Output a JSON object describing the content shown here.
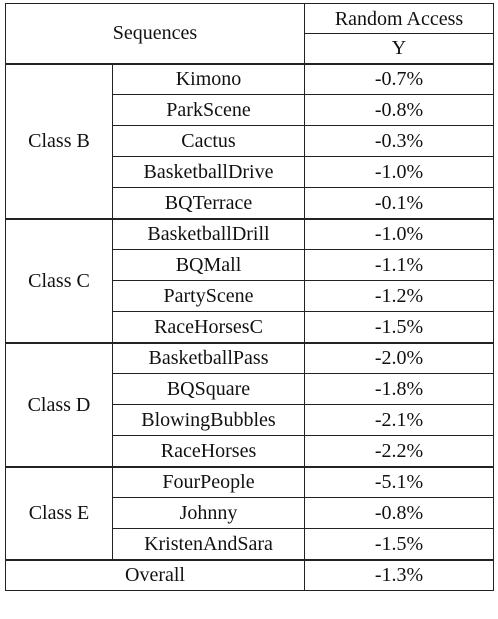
{
  "header": {
    "sequences": "Sequences",
    "random_access": "Random Access",
    "channel": "Y"
  },
  "groups": [
    {
      "label": "Class B",
      "rows": [
        {
          "sequence": "Kimono",
          "value": "-0.7%"
        },
        {
          "sequence": "ParkScene",
          "value": "-0.8%"
        },
        {
          "sequence": "Cactus",
          "value": "-0.3%"
        },
        {
          "sequence": "BasketballDrive",
          "value": "-1.0%"
        },
        {
          "sequence": "BQTerrace",
          "value": "-0.1%"
        }
      ]
    },
    {
      "label": "Class C",
      "rows": [
        {
          "sequence": "BasketballDrill",
          "value": "-1.0%"
        },
        {
          "sequence": "BQMall",
          "value": "-1.1%"
        },
        {
          "sequence": "PartyScene",
          "value": "-1.2%"
        },
        {
          "sequence": "RaceHorsesC",
          "value": "-1.5%"
        }
      ]
    },
    {
      "label": "Class D",
      "rows": [
        {
          "sequence": "BasketballPass",
          "value": "-2.0%"
        },
        {
          "sequence": "BQSquare",
          "value": "-1.8%"
        },
        {
          "sequence": "BlowingBubbles",
          "value": "-2.1%"
        },
        {
          "sequence": "RaceHorses",
          "value": "-2.2%"
        }
      ]
    },
    {
      "label": "Class E",
      "rows": [
        {
          "sequence": "FourPeople",
          "value": "-5.1%"
        },
        {
          "sequence": "Johnny",
          "value": "-0.8%"
        },
        {
          "sequence": "KristenAndSara",
          "value": "-1.5%"
        }
      ]
    }
  ],
  "overall": {
    "label": "Overall",
    "value": "-1.3%"
  }
}
